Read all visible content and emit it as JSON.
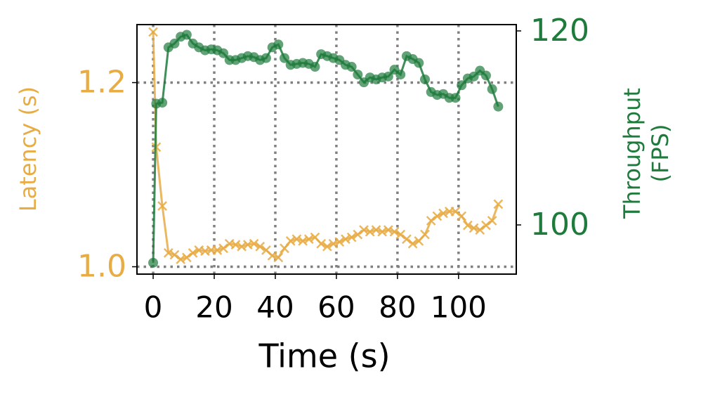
{
  "chart_data": {
    "type": "line",
    "xlabel": "Time (s)",
    "ylabel": "Latency (s)",
    "y2label": [
      "Throughput",
      "(FPS)"
    ],
    "x": [
      0,
      1,
      3,
      5,
      7,
      9,
      11,
      13,
      15,
      17,
      19,
      21,
      23,
      25,
      27,
      29,
      31,
      33,
      35,
      37,
      39,
      41,
      43,
      45,
      47,
      49,
      51,
      53,
      55,
      57,
      59,
      61,
      63,
      65,
      67,
      69,
      71,
      73,
      75,
      77,
      79,
      81,
      83,
      85,
      87,
      89,
      91,
      93,
      95,
      97,
      99,
      101,
      103,
      105,
      107,
      109,
      111,
      113
    ],
    "series": [
      {
        "name": "Latency (s)",
        "color": "#e8ac45",
        "marker": "x",
        "values": [
          1.255,
          1.13,
          1.066,
          1.015,
          1.013,
          1.008,
          1.01,
          1.015,
          1.018,
          1.017,
          1.018,
          1.018,
          1.02,
          1.025,
          1.024,
          1.022,
          1.024,
          1.025,
          1.022,
          1.018,
          1.012,
          1.01,
          1.02,
          1.028,
          1.03,
          1.028,
          1.03,
          1.032,
          1.025,
          1.022,
          1.025,
          1.027,
          1.03,
          1.032,
          1.035,
          1.04,
          1.038,
          1.04,
          1.038,
          1.04,
          1.038,
          1.035,
          1.03,
          1.025,
          1.028,
          1.035,
          1.05,
          1.055,
          1.058,
          1.06,
          1.06,
          1.055,
          1.045,
          1.042,
          1.04,
          1.045,
          1.05,
          1.068
        ]
      },
      {
        "name": "Throughput (FPS)",
        "color": "#1e7b3c",
        "marker": "o",
        "axis": "y2",
        "values": [
          96.1,
          112.5,
          112.6,
          118.3,
          118.7,
          119.4,
          119.6,
          118.7,
          118.3,
          118.0,
          118.1,
          118.0,
          117.7,
          117.0,
          117.0,
          117.2,
          117.4,
          117.3,
          117.0,
          117.2,
          118.3,
          118.6,
          117.2,
          116.5,
          116.6,
          116.7,
          116.6,
          116.3,
          117.6,
          117.4,
          117.2,
          117.0,
          116.5,
          116.3,
          115.5,
          114.7,
          115.2,
          115.0,
          115.2,
          115.3,
          116.0,
          115.5,
          117.4,
          117.1,
          116.7,
          115.0,
          113.7,
          113.4,
          113.5,
          113.1,
          113.1,
          114.4,
          115.1,
          115.3,
          115.9,
          115.4,
          114.0,
          112.2
        ]
      }
    ],
    "xlim": [
      -5.3,
      118.9
    ],
    "xticks": [
      0,
      20,
      40,
      60,
      80,
      100
    ],
    "ylim": [
      0.992,
      1.263
    ],
    "yticks": [
      {
        "value": 1.0,
        "label": "1.0"
      },
      1.2
    ],
    "y2lim": [
      94.93,
      120.65
    ],
    "y2ticks": [
      100,
      120
    ],
    "grid": true
  }
}
